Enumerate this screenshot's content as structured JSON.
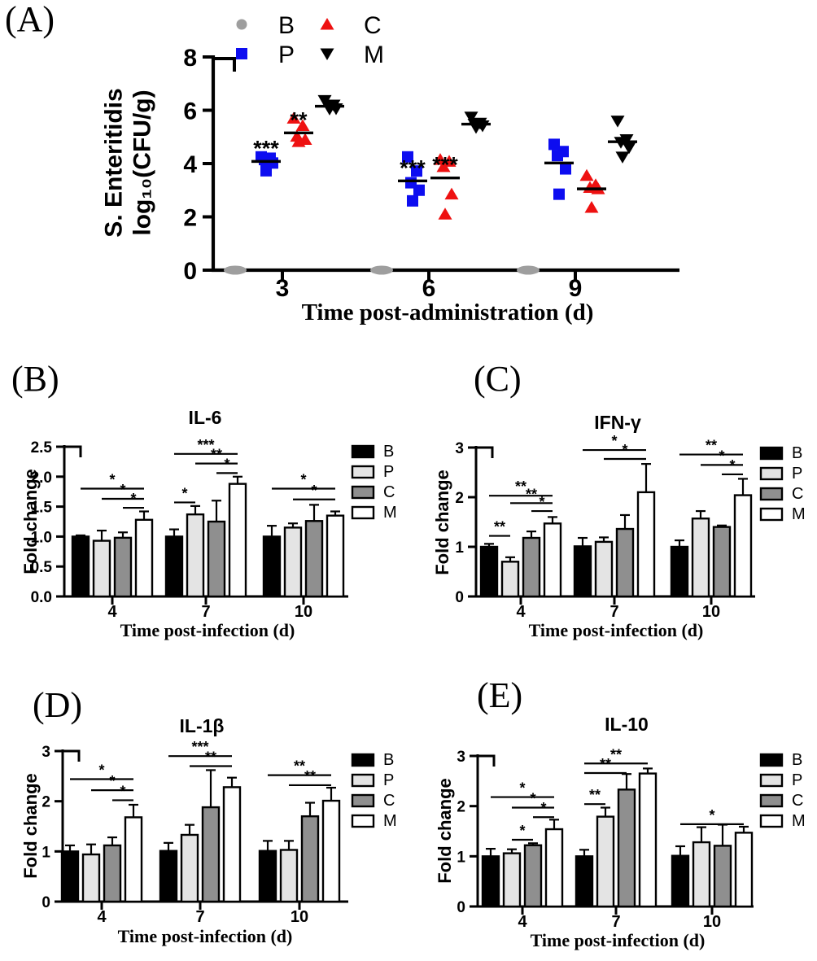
{
  "chart_data": [
    {
      "id": "A",
      "label": "(A)",
      "type": "scatter",
      "ylabel_line1": "S. Enteritidis",
      "ylabel_line2": "log₁₀(CFU/g)",
      "xlabel": "Time post-administration (d)",
      "ylim": [
        0,
        8
      ],
      "ytick_values": [
        0,
        2,
        4,
        6,
        8
      ],
      "ytick_labels": [
        "0",
        "2",
        "4",
        "6",
        "8"
      ],
      "timepoints": [
        "3",
        "6",
        "9"
      ],
      "legend_rows": [
        [
          "B",
          "C"
        ],
        [
          "P",
          "M"
        ]
      ],
      "groups": [
        {
          "name": "B",
          "marker": "circle",
          "color": "#9E9E9E",
          "points": [
            [
              0,
              0,
              0,
              0,
              0
            ],
            [
              0,
              0,
              0,
              0,
              0
            ],
            [
              0,
              0,
              0,
              0,
              0
            ]
          ],
          "means": [
            0,
            0,
            0
          ],
          "sig": [
            null,
            null,
            null
          ]
        },
        {
          "name": "P",
          "marker": "square",
          "color": "#0D0DF0",
          "points": [
            [
              4.25,
              4.2,
              4.15,
              4.02,
              3.73
            ],
            [
              4.25,
              3.72,
              3.28,
              3.0,
              2.6
            ],
            [
              4.72,
              4.45,
              4.3,
              3.8,
              2.85
            ]
          ],
          "means": [
            4.08,
            3.35,
            4.02
          ],
          "sig": [
            "***",
            "***",
            null
          ]
        },
        {
          "name": "C",
          "marker": "triangle-up",
          "color": "#EE1111",
          "points": [
            [
              5.7,
              5.42,
              5.02,
              4.9,
              4.82
            ],
            [
              4.15,
              4.08,
              3.88,
              2.85,
              2.1
            ],
            [
              3.55,
              3.2,
              3.1,
              3.05,
              2.35
            ]
          ],
          "means": [
            5.15,
            3.46,
            3.05
          ],
          "sig": [
            "**",
            "***",
            null
          ]
        },
        {
          "name": "M",
          "marker": "triangle-down",
          "color": "#000000",
          "points": [
            [
              6.37,
              6.2,
              6.17,
              6.06,
              6.05
            ],
            [
              5.75,
              5.52,
              5.48,
              5.42,
              5.36
            ],
            [
              5.6,
              4.9,
              4.8,
              4.6,
              4.25
            ]
          ],
          "means": [
            6.15,
            5.48,
            4.82
          ],
          "sig": [
            null,
            null,
            null
          ]
        }
      ]
    },
    {
      "id": "B",
      "label": "(B)",
      "type": "bar",
      "title": "IL-6",
      "ylabel": "Fold change",
      "xlabel": "Time post-infection (d)",
      "ylim": [
        0,
        2.5
      ],
      "ytick_values": [
        0,
        0.5,
        1.0,
        1.5,
        2.0,
        2.5
      ],
      "ytick_labels": [
        "0.0",
        "0.5",
        "1.0",
        "1.5",
        "2.0",
        "2.5"
      ],
      "categories": [
        "4",
        "7",
        "10"
      ],
      "legend": [
        "B",
        "P",
        "C",
        "M"
      ],
      "series": [
        {
          "name": "B",
          "color": "#000000",
          "values": [
            1.0,
            1.0,
            1.0
          ],
          "errors": [
            0.02,
            0.12,
            0.18
          ]
        },
        {
          "name": "P",
          "color": "#E4E4E4",
          "values": [
            0.93,
            1.37,
            1.15
          ],
          "errors": [
            0.17,
            0.14,
            0.07
          ]
        },
        {
          "name": "C",
          "color": "#8F8F8F",
          "values": [
            0.98,
            1.25,
            1.26
          ],
          "errors": [
            0.09,
            0.35,
            0.27
          ]
        },
        {
          "name": "M",
          "color": "#FFFFFF",
          "values": [
            1.28,
            1.88,
            1.35
          ],
          "errors": [
            0.14,
            0.12,
            0.07
          ]
        }
      ],
      "significance": [
        {
          "cat": 0,
          "from": "B",
          "to": "M",
          "label": "*",
          "y": 1.8
        },
        {
          "cat": 0,
          "from": "P",
          "to": "M",
          "label": "*",
          "y": 1.63
        },
        {
          "cat": 0,
          "from": "C",
          "to": "M",
          "label": "*",
          "y": 1.48
        },
        {
          "cat": 1,
          "from": "B",
          "to": "P",
          "label": "*",
          "y": 1.57
        },
        {
          "cat": 1,
          "from": "B",
          "to": "M",
          "label": "***",
          "y": 2.38
        },
        {
          "cat": 1,
          "from": "P",
          "to": "M",
          "label": "**",
          "y": 2.22
        },
        {
          "cat": 1,
          "from": "C",
          "to": "M",
          "label": "*",
          "y": 2.06
        },
        {
          "cat": 2,
          "from": "B",
          "to": "M",
          "label": "*",
          "y": 1.8
        },
        {
          "cat": 2,
          "from": "P",
          "to": "M",
          "label": "*",
          "y": 1.62
        }
      ]
    },
    {
      "id": "C",
      "label": "(C)",
      "type": "bar",
      "title": "IFN-γ",
      "ylabel": "Fold change",
      "xlabel": "Time post-infection (d)",
      "ylim": [
        0,
        3
      ],
      "ytick_values": [
        0,
        1,
        2,
        3
      ],
      "ytick_labels": [
        "0",
        "1",
        "2",
        "3"
      ],
      "categories": [
        "4",
        "7",
        "10"
      ],
      "legend": [
        "B",
        "P",
        "C",
        "M"
      ],
      "series": [
        {
          "name": "B",
          "color": "#000000",
          "values": [
            1.0,
            1.01,
            1.0
          ],
          "errors": [
            0.06,
            0.17,
            0.13
          ]
        },
        {
          "name": "P",
          "color": "#E4E4E4",
          "values": [
            0.7,
            1.1,
            1.57
          ],
          "errors": [
            0.09,
            0.09,
            0.15
          ]
        },
        {
          "name": "C",
          "color": "#8F8F8F",
          "values": [
            1.18,
            1.36,
            1.4
          ],
          "errors": [
            0.13,
            0.28,
            0.03
          ]
        },
        {
          "name": "M",
          "color": "#FFFFFF",
          "values": [
            1.47,
            2.1,
            2.04
          ],
          "errors": [
            0.13,
            0.57,
            0.33
          ]
        }
      ],
      "significance": [
        {
          "cat": 0,
          "from": "B",
          "to": "P",
          "label": "**",
          "y": 1.22
        },
        {
          "cat": 0,
          "from": "B",
          "to": "M",
          "label": "**",
          "y": 2.03
        },
        {
          "cat": 0,
          "from": "P",
          "to": "M",
          "label": "**",
          "y": 1.88
        },
        {
          "cat": 0,
          "from": "C",
          "to": "M",
          "label": "*",
          "y": 1.72
        },
        {
          "cat": 1,
          "from": "B",
          "to": "M",
          "label": "*",
          "y": 2.95
        },
        {
          "cat": 1,
          "from": "P",
          "to": "M",
          "label": "*",
          "y": 2.77
        },
        {
          "cat": 2,
          "from": "B",
          "to": "M",
          "label": "**",
          "y": 2.86
        },
        {
          "cat": 2,
          "from": "P",
          "to": "M",
          "label": "*",
          "y": 2.65
        },
        {
          "cat": 2,
          "from": "C",
          "to": "M",
          "label": "*",
          "y": 2.46
        }
      ]
    },
    {
      "id": "D",
      "label": "(D)",
      "type": "bar",
      "title": "IL-1β",
      "ylabel": "Fold change",
      "xlabel": "Time post-infection (d)",
      "ylim": [
        0,
        3
      ],
      "ytick_values": [
        0,
        1,
        2,
        3
      ],
      "ytick_labels": [
        "0",
        "1",
        "2",
        "3"
      ],
      "categories": [
        "4",
        "7",
        "10"
      ],
      "legend": [
        "B",
        "P",
        "C",
        "M"
      ],
      "series": [
        {
          "name": "B",
          "color": "#000000",
          "values": [
            1.0,
            1.01,
            1.01
          ],
          "errors": [
            0.12,
            0.16,
            0.2
          ]
        },
        {
          "name": "P",
          "color": "#E4E4E4",
          "values": [
            0.94,
            1.33,
            1.03
          ],
          "errors": [
            0.2,
            0.2,
            0.18
          ]
        },
        {
          "name": "C",
          "color": "#8F8F8F",
          "values": [
            1.12,
            1.88,
            1.7
          ],
          "errors": [
            0.16,
            0.74,
            0.27
          ]
        },
        {
          "name": "M",
          "color": "#FFFFFF",
          "values": [
            1.68,
            2.28,
            2.01
          ],
          "errors": [
            0.25,
            0.19,
            0.26
          ]
        }
      ],
      "significance": [
        {
          "cat": 0,
          "from": "B",
          "to": "M",
          "label": "*",
          "y": 2.44
        },
        {
          "cat": 0,
          "from": "P",
          "to": "M",
          "label": "*",
          "y": 2.22
        },
        {
          "cat": 0,
          "from": "C",
          "to": "M",
          "label": "*",
          "y": 2.02
        },
        {
          "cat": 1,
          "from": "B",
          "to": "M",
          "label": "***",
          "y": 2.9
        },
        {
          "cat": 1,
          "from": "P",
          "to": "M",
          "label": "**",
          "y": 2.7
        },
        {
          "cat": 2,
          "from": "B",
          "to": "M",
          "label": "**",
          "y": 2.52
        },
        {
          "cat": 2,
          "from": "P",
          "to": "M",
          "label": "**",
          "y": 2.32
        }
      ]
    },
    {
      "id": "E",
      "label": "(E)",
      "type": "bar",
      "title": "IL-10",
      "ylabel": "Fold change",
      "xlabel": "Time post-infection (d)",
      "ylim": [
        0,
        3
      ],
      "ytick_values": [
        0,
        1,
        2,
        3
      ],
      "ytick_labels": [
        "0",
        "1",
        "2",
        "3"
      ],
      "categories": [
        "4",
        "7",
        "10"
      ],
      "legend": [
        "B",
        "P",
        "C",
        "M"
      ],
      "series": [
        {
          "name": "B",
          "color": "#000000",
          "values": [
            1.0,
            1.0,
            1.01
          ],
          "errors": [
            0.15,
            0.13,
            0.19
          ]
        },
        {
          "name": "P",
          "color": "#E4E4E4",
          "values": [
            1.06,
            1.79,
            1.28
          ],
          "errors": [
            0.08,
            0.18,
            0.3
          ]
        },
        {
          "name": "C",
          "color": "#8F8F8F",
          "values": [
            1.22,
            2.33,
            1.21
          ],
          "errors": [
            0.04,
            0.31,
            0.42
          ]
        },
        {
          "name": "M",
          "color": "#FFFFFF",
          "values": [
            1.54,
            2.65,
            1.47
          ],
          "errors": [
            0.19,
            0.1,
            0.12
          ]
        }
      ],
      "significance": [
        {
          "cat": 0,
          "from": "P",
          "to": "C",
          "label": "*",
          "y": 1.33
        },
        {
          "cat": 0,
          "from": "B",
          "to": "M",
          "label": "*",
          "y": 2.18
        },
        {
          "cat": 0,
          "from": "P",
          "to": "M",
          "label": "*",
          "y": 1.97
        },
        {
          "cat": 0,
          "from": "C",
          "to": "M",
          "label": "*",
          "y": 1.78
        },
        {
          "cat": 1,
          "from": "B",
          "to": "P",
          "label": "**",
          "y": 2.04
        },
        {
          "cat": 1,
          "from": "B",
          "to": "C",
          "label": "**",
          "y": 2.66
        },
        {
          "cat": 1,
          "from": "B",
          "to": "M",
          "label": "**",
          "y": 2.85
        },
        {
          "cat": 2,
          "from": "B",
          "to": "M",
          "label": "*",
          "y": 1.64
        }
      ]
    }
  ]
}
